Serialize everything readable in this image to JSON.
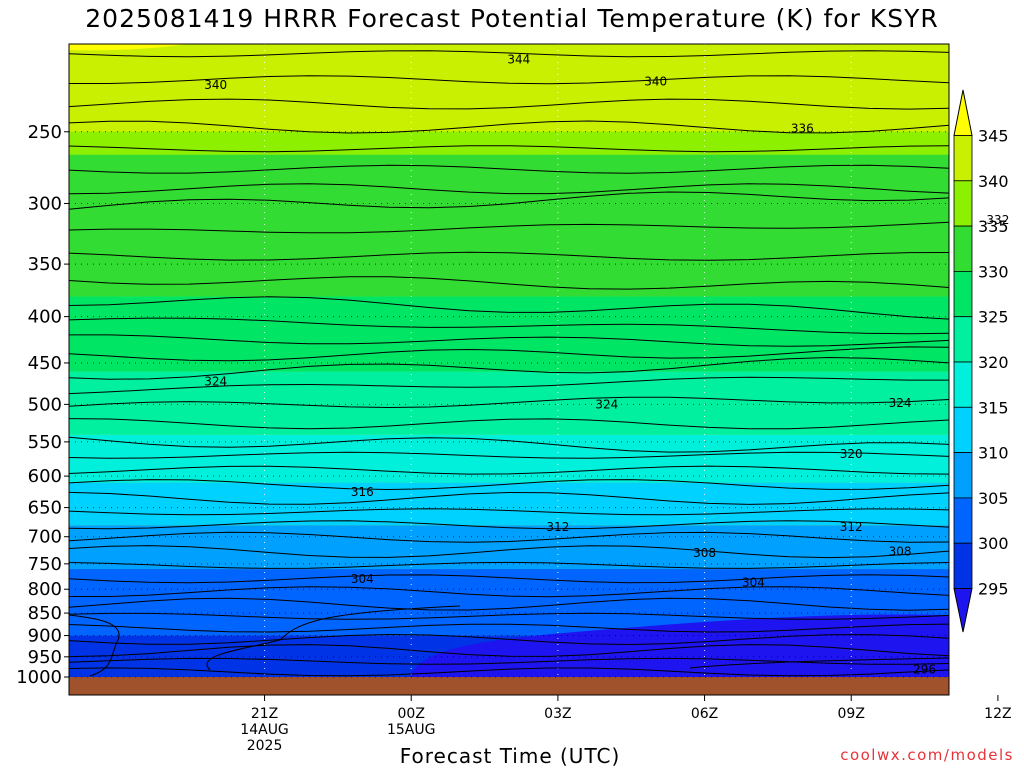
{
  "title": "2025081419 HRRR Forecast Potential Temperature (K) for KSYR",
  "credit": "coolwx.com/models",
  "chart_data": {
    "type": "contour",
    "title": "2025081419 HRRR Forecast Potential Temperature (K) for KSYR",
    "xlabel": "Forecast Time (UTC)",
    "ylabel": "",
    "x_range_hours": [
      -2,
      16
    ],
    "y_range_hpa": [
      1000,
      200
    ],
    "y_scale": "log-pressure",
    "grid": "dotted",
    "x_ticks": [
      {
        "hour": 2,
        "lines": [
          "21Z",
          "14AUG",
          "2025"
        ]
      },
      {
        "hour": 5,
        "lines": [
          "00Z",
          "15AUG"
        ]
      },
      {
        "hour": 8,
        "lines": [
          "03Z"
        ]
      },
      {
        "hour": 11,
        "lines": [
          "06Z"
        ]
      },
      {
        "hour": 14,
        "lines": [
          "09Z"
        ]
      },
      {
        "hour": 17,
        "lines": [
          "12Z"
        ]
      }
    ],
    "y_ticks": [
      250,
      300,
      350,
      400,
      450,
      500,
      550,
      600,
      650,
      700,
      750,
      800,
      850,
      900,
      950,
      1000
    ],
    "colorbar": {
      "ticks": [
        "345",
        "340",
        "335",
        "330",
        "325",
        "320",
        "315",
        "310",
        "305",
        "300",
        "295"
      ],
      "colors": [
        "#ffff00",
        "#c8f000",
        "#8cf000",
        "#32dc32",
        "#00e664",
        "#00f0a0",
        "#00f0dc",
        "#00d2ff",
        "#00a0ff",
        "#0064ff",
        "#0032e6",
        "#1e14f0"
      ]
    },
    "contour_labels": [
      {
        "value": "344",
        "hour": 7.2,
        "hpa": 208
      },
      {
        "value": "340",
        "hour": 1.0,
        "hpa": 222
      },
      {
        "value": "340",
        "hour": 10.0,
        "hpa": 220
      },
      {
        "value": "336",
        "hour": 13.0,
        "hpa": 248
      },
      {
        "value": "332",
        "hour": 17.0,
        "hpa": 313
      },
      {
        "value": "324",
        "hour": 1.0,
        "hpa": 472
      },
      {
        "value": "324",
        "hour": 9.0,
        "hpa": 500
      },
      {
        "value": "324",
        "hour": 15.0,
        "hpa": 498
      },
      {
        "value": "320",
        "hour": 14.0,
        "hpa": 567
      },
      {
        "value": "316",
        "hour": 4.0,
        "hpa": 625
      },
      {
        "value": "312",
        "hour": 8.0,
        "hpa": 683
      },
      {
        "value": "312",
        "hour": 14.0,
        "hpa": 683
      },
      {
        "value": "308",
        "hour": 11.0,
        "hpa": 730
      },
      {
        "value": "308",
        "hour": 15.0,
        "hpa": 727
      },
      {
        "value": "304",
        "hour": 4.0,
        "hpa": 779
      },
      {
        "value": "304",
        "hour": 12.0,
        "hpa": 786
      },
      {
        "value": "296",
        "hour": 15.5,
        "hpa": 981
      }
    ],
    "fill_bands": [
      {
        "lower": 340,
        "upper": 345,
        "top_hpa": 200,
        "bottom_hpa": 250
      },
      {
        "lower": 335,
        "upper": 340,
        "top_hpa": 250,
        "bottom_hpa": 265
      },
      {
        "lower": 330,
        "upper": 335,
        "top_hpa": 265,
        "bottom_hpa": 380
      },
      {
        "lower": 325,
        "upper": 330,
        "top_hpa": 380,
        "bottom_hpa": 460
      },
      {
        "lower": 320,
        "upper": 325,
        "top_hpa": 460,
        "bottom_hpa": 540
      },
      {
        "lower": 315,
        "upper": 320,
        "top_hpa": 540,
        "bottom_hpa": 610
      },
      {
        "lower": 310,
        "upper": 315,
        "top_hpa": 610,
        "bottom_hpa": 680
      },
      {
        "lower": 305,
        "upper": 310,
        "top_hpa": 680,
        "bottom_hpa": 760
      },
      {
        "lower": 300,
        "upper": 305,
        "top_hpa": 760,
        "bottom_hpa": 900
      },
      {
        "lower": 295,
        "upper": 300,
        "top_hpa": 900,
        "bottom_hpa": 1000
      }
    ],
    "ground_color": "#a0522d"
  }
}
